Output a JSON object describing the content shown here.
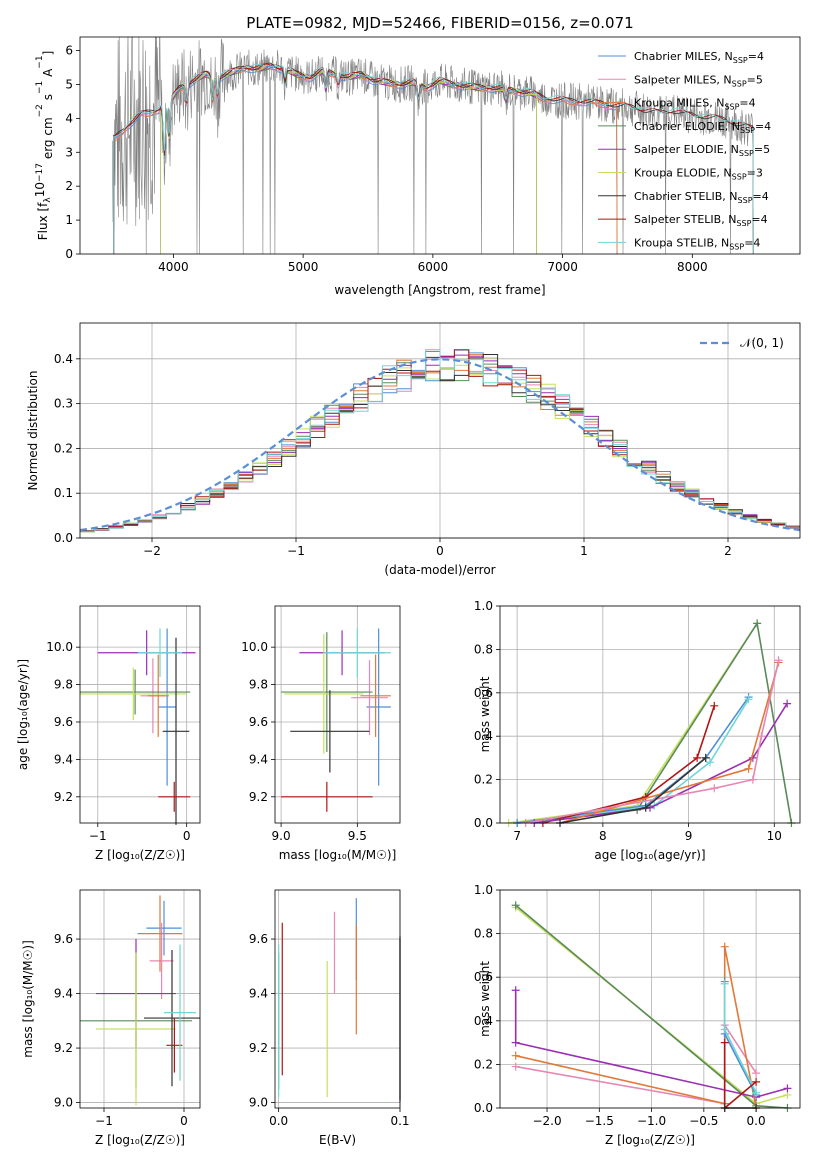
{
  "figure_title": "PLATE=0982, MJD=52466, FIBERID=0156, z=0.071",
  "colors": {
    "chabrier_miles": "#4f8fd6",
    "salpeter_miles": "#e887b4",
    "kroupa_miles": "#e0793a",
    "chabrier_elodie": "#5a8a5a",
    "salpeter_elodie": "#9a2fb4",
    "kroupa_elodie": "#c5e05e",
    "chabrier_stelib": "#333333",
    "salpeter_stelib": "#b01515",
    "kroupa_stelib": "#6fd6d6",
    "data": "#808080",
    "normal": "#5b8ed6"
  },
  "chart_data": [
    {
      "type": "line",
      "title": "PLATE=0982, MJD=52466, FIBERID=0156, z=0.071",
      "xlabel": "wavelength [Angstrom, rest frame]",
      "ylabel_parts": [
        "Flux [f",
        "λ",
        "10",
        "−17",
        " erg cm",
        "−2",
        " s",
        "−1",
        " A",
        "−1",
        "]"
      ],
      "xlim": [
        3280,
        8830
      ],
      "ylim": [
        0,
        6.4
      ],
      "xticks": [
        "4000",
        "5000",
        "6000",
        "7000",
        "8000"
      ],
      "yticks": [
        "0",
        "1",
        "2",
        "3",
        "4",
        "5",
        "6"
      ],
      "legend_position": "upper right",
      "legend": [
        {
          "label": "Chabrier MILES, N",
          "n": "4"
        },
        {
          "label": "Salpeter MILES, N",
          "n": "5"
        },
        {
          "label": "Kroupa MILES, N",
          "n": "4"
        },
        {
          "label": "Chabrier ELODIE, N",
          "n": "4"
        },
        {
          "label": "Salpeter ELODIE, N",
          "n": "5"
        },
        {
          "label": "Kroupa ELODIE, N",
          "n": "3"
        },
        {
          "label": "Chabrier STELIB, N",
          "n": "4"
        },
        {
          "label": "Salpeter STELIB, N",
          "n": "4"
        },
        {
          "label": "Kroupa STELIB, N",
          "n": "4"
        }
      ],
      "legend_sub": "SSP",
      "continuum": {
        "x": [
          3550,
          3650,
          3750,
          3850,
          3950,
          4050,
          4150,
          4250,
          4350,
          4450,
          4550,
          4650,
          4750,
          4850,
          4950,
          5050,
          5150,
          5250,
          5350,
          5450,
          5550,
          5650,
          5750,
          5850,
          5950,
          6050,
          6150,
          6250,
          6350,
          6450,
          6550,
          6650,
          6750,
          6850,
          6950,
          7050,
          7150,
          7250,
          7350,
          7450,
          7550,
          7650,
          7750,
          7850,
          7950,
          8050,
          8150,
          8250,
          8350,
          8450
        ],
        "y": [
          3.4,
          3.8,
          4.1,
          4.2,
          4.4,
          4.9,
          5.1,
          5.3,
          5.2,
          5.35,
          5.5,
          5.45,
          5.55,
          5.45,
          5.3,
          5.2,
          5.4,
          5.3,
          5.2,
          5.3,
          5.1,
          5.05,
          5.0,
          5.05,
          4.9,
          5.1,
          5.0,
          4.95,
          4.9,
          4.9,
          4.85,
          4.8,
          4.75,
          4.6,
          4.55,
          4.5,
          4.5,
          4.45,
          4.4,
          4.35,
          4.3,
          4.2,
          4.15,
          4.2,
          4.1,
          4.05,
          4.0,
          3.95,
          3.8,
          3.7
        ]
      },
      "absorption_features": [
        {
          "x": 3930,
          "depth": 1.6
        },
        {
          "x": 3968,
          "depth": 1.2
        },
        {
          "x": 4102,
          "depth": 0.6
        },
        {
          "x": 4300,
          "depth": 0.8
        },
        {
          "x": 4340,
          "depth": 0.6
        },
        {
          "x": 4861,
          "depth": 0.4
        },
        {
          "x": 5175,
          "depth": 0.6
        },
        {
          "x": 5270,
          "depth": 0.3
        },
        {
          "x": 5890,
          "depth": 0.5
        },
        {
          "x": 6563,
          "depth": 0.35
        }
      ]
    },
    {
      "type": "line",
      "xlabel": "(data-model)/error",
      "ylabel": "Normed distribution",
      "xlim": [
        -2.5,
        2.5
      ],
      "ylim": [
        0,
        0.48
      ],
      "xticks": [
        "−2",
        "−1",
        "0",
        "1",
        "2"
      ],
      "xtick_values": [
        -2,
        -1,
        0,
        1,
        2
      ],
      "yticks": [
        "0.0",
        "0.1",
        "0.2",
        "0.3",
        "0.4"
      ],
      "ytick_values": [
        0,
        0.1,
        0.2,
        0.3,
        0.4
      ],
      "legend": "𝒩(0, 1)",
      "legend_position": "upper right",
      "histogram_bin_width": 0.1
    },
    {
      "type": "scatter",
      "xlabel": "Z [log₁₀(Z/Z☉)]",
      "ylabel": "age  [log₁₀(age/yr)]",
      "xlim": [
        -1.2,
        0.15
      ],
      "ylim": [
        9.06,
        10.22
      ],
      "xticks": [
        "−1",
        "0"
      ],
      "xtick_values": [
        -1,
        0
      ],
      "yticks": [
        "9.2",
        "9.4",
        "9.6",
        "9.8",
        "10.0"
      ],
      "ytick_values": [
        9.2,
        9.4,
        9.6,
        9.8,
        10.0
      ],
      "points": [
        {
          "model": "chabrier_miles",
          "x": -0.22,
          "xerr": 0.1,
          "y": 9.68,
          "yerr": 0.42
        },
        {
          "model": "salpeter_miles",
          "x": -0.38,
          "xerr": 0.14,
          "y": 9.74,
          "yerr": 0.2
        },
        {
          "model": "kroupa_miles",
          "x": -0.32,
          "xerr": 0.12,
          "y": 9.74,
          "yerr": 0.22
        },
        {
          "model": "chabrier_elodie",
          "x": -0.58,
          "xerr": 0.62,
          "y": 9.76,
          "yerr": 0.12
        },
        {
          "model": "salpeter_elodie",
          "x": -0.45,
          "xerr": 0.55,
          "y": 9.97,
          "yerr": 0.12
        },
        {
          "model": "kroupa_elodie",
          "x": -0.6,
          "xerr": 0.6,
          "y": 9.75,
          "yerr": 0.14
        },
        {
          "model": "chabrier_stelib",
          "x": -0.12,
          "xerr": 0.15,
          "y": 9.55,
          "yerr": 0.5
        },
        {
          "model": "salpeter_stelib",
          "x": -0.14,
          "xerr": 0.18,
          "y": 9.2,
          "yerr": 0.08
        },
        {
          "model": "kroupa_stelib",
          "x": -0.3,
          "xerr": 0.25,
          "y": 9.97,
          "yerr": 0.13
        }
      ]
    },
    {
      "type": "scatter",
      "xlabel": "mass [log₁₀(M/M☉)]",
      "ylabel": "",
      "xlim": [
        8.96,
        9.78
      ],
      "ylim": [
        9.06,
        10.22
      ],
      "xticks": [
        "9.0",
        "9.5"
      ],
      "xtick_values": [
        9.0,
        9.5
      ],
      "yticks": [
        "9.2",
        "9.4",
        "9.6",
        "9.8",
        "10.0"
      ],
      "ytick_values": [
        9.2,
        9.4,
        9.6,
        9.8,
        10.0
      ],
      "points": [
        {
          "model": "chabrier_miles",
          "x": 9.64,
          "xerr": 0.08,
          "y": 9.68,
          "yerr": 0.42
        },
        {
          "model": "salpeter_miles",
          "x": 9.58,
          "xerr": 0.12,
          "y": 9.73,
          "yerr": 0.2
        },
        {
          "model": "kroupa_miles",
          "x": 9.62,
          "xerr": 0.1,
          "y": 9.74,
          "yerr": 0.22
        },
        {
          "model": "chabrier_elodie",
          "x": 9.3,
          "xerr": 0.3,
          "y": 9.76,
          "yerr": 0.32
        },
        {
          "model": "salpeter_elodie",
          "x": 9.4,
          "xerr": 0.28,
          "y": 9.97,
          "yerr": 0.12
        },
        {
          "model": "kroupa_elodie",
          "x": 9.28,
          "xerr": 0.26,
          "y": 9.75,
          "yerr": 0.32
        },
        {
          "model": "chabrier_stelib",
          "x": 9.32,
          "xerr": 0.26,
          "y": 9.55,
          "yerr": 0.22
        },
        {
          "model": "salpeter_stelib",
          "x": 9.3,
          "xerr": 0.3,
          "y": 9.2,
          "yerr": 0.08
        },
        {
          "model": "kroupa_stelib",
          "x": 9.5,
          "xerr": 0.22,
          "y": 9.97,
          "yerr": 0.13
        }
      ]
    },
    {
      "type": "line",
      "xlabel": "age  [log₁₀(age/yr)]",
      "ylabel": "mass weight",
      "xlim": [
        6.8,
        10.3
      ],
      "ylim": [
        0,
        1.0
      ],
      "xticks": [
        "7",
        "8",
        "9",
        "10"
      ],
      "xtick_values": [
        7,
        8,
        9,
        10
      ],
      "yticks": [
        "0.0",
        "0.2",
        "0.4",
        "0.6",
        "0.8",
        "1.0"
      ],
      "ytick_values": [
        0,
        0.2,
        0.4,
        0.6,
        0.8,
        1.0
      ],
      "series": [
        {
          "model": "kroupa_elodie",
          "x": [
            6.9,
            8.4,
            9.8
          ],
          "y": [
            0.0,
            0.08,
            0.92
          ]
        },
        {
          "model": "chabrier_elodie",
          "x": [
            7.0,
            8.4,
            9.8,
            10.2
          ],
          "y": [
            0.0,
            0.06,
            0.92,
            0.0
          ]
        },
        {
          "model": "chabrier_miles",
          "x": [
            7.0,
            8.5,
            9.2,
            9.7
          ],
          "y": [
            0.0,
            0.08,
            0.3,
            0.58
          ]
        },
        {
          "model": "kroupa_stelib",
          "x": [
            7.2,
            8.6,
            9.25,
            9.7
          ],
          "y": [
            0.0,
            0.08,
            0.28,
            0.57
          ]
        },
        {
          "model": "salpeter_stelib",
          "x": [
            7.3,
            8.5,
            9.1,
            9.3
          ],
          "y": [
            0.0,
            0.12,
            0.3,
            0.54
          ]
        },
        {
          "model": "salpeter_elodie",
          "x": [
            7.2,
            8.55,
            9.75,
            10.15
          ],
          "y": [
            0.0,
            0.07,
            0.3,
            0.55
          ]
        },
        {
          "model": "kroupa_miles",
          "x": [
            7.5,
            9.7,
            10.05
          ],
          "y": [
            0.0,
            0.25,
            0.74
          ]
        },
        {
          "model": "salpeter_miles",
          "x": [
            7.1,
            9.3,
            9.75,
            9.85,
            10.05
          ],
          "y": [
            0.0,
            0.16,
            0.2,
            0.4,
            0.75
          ]
        },
        {
          "model": "chabrier_stelib",
          "x": [
            7.5,
            8.5,
            9.2
          ],
          "y": [
            0.0,
            0.07,
            0.3
          ]
        }
      ]
    },
    {
      "type": "scatter",
      "xlabel": "Z [log₁₀(Z/Z☉)]",
      "ylabel": "mass [log₁₀(M/M☉)]",
      "xlim": [
        -1.3,
        0.2
      ],
      "ylim": [
        8.98,
        9.78
      ],
      "xticks": [
        "−1",
        "0"
      ],
      "xtick_values": [
        -1,
        0
      ],
      "yticks": [
        "9.0",
        "9.2",
        "9.4",
        "9.6"
      ],
      "ytick_values": [
        9.0,
        9.2,
        9.4,
        9.6
      ],
      "points": [
        {
          "model": "chabrier_miles",
          "x": -0.25,
          "xerr": 0.22,
          "y": 9.64,
          "yerr": 0.1
        },
        {
          "model": "salpeter_miles",
          "x": -0.28,
          "xerr": 0.15,
          "y": 9.52,
          "yerr": 0.14
        },
        {
          "model": "kroupa_miles",
          "x": -0.3,
          "xerr": 0.28,
          "y": 9.62,
          "yerr": 0.14
        },
        {
          "model": "chabrier_elodie",
          "x": -0.6,
          "xerr": 0.7,
          "y": 9.3,
          "yerr": 0.25
        },
        {
          "model": "salpeter_elodie",
          "x": -0.6,
          "xerr": 0.5,
          "y": 9.4,
          "yerr": 0.2
        },
        {
          "model": "kroupa_elodie",
          "x": -0.6,
          "xerr": 0.5,
          "y": 9.27,
          "yerr": 0.28
        },
        {
          "model": "chabrier_stelib",
          "x": -0.15,
          "xerr": 0.35,
          "y": 9.31,
          "yerr": 0.25
        },
        {
          "model": "salpeter_stelib",
          "x": -0.12,
          "xerr": 0.1,
          "y": 9.21,
          "yerr": 0.1
        },
        {
          "model": "kroupa_stelib",
          "x": -0.05,
          "xerr": 0.2,
          "y": 9.33,
          "yerr": 0.25
        }
      ]
    },
    {
      "type": "scatter",
      "xlabel": "E(B-V)",
      "ylabel": "",
      "xlim": [
        -0.003,
        0.1
      ],
      "ylim": [
        8.98,
        9.78
      ],
      "xticks": [
        "0.0",
        "0.1"
      ],
      "xtick_values": [
        0.0,
        0.1
      ],
      "yticks": [
        "9.0",
        "9.2",
        "9.4",
        "9.6"
      ],
      "ytick_values": [
        9.0,
        9.2,
        9.4,
        9.6
      ],
      "points": [
        {
          "model": "chabrier_miles",
          "x": 0.064,
          "xerr": 0,
          "y": 9.6,
          "yerr": 0.15
        },
        {
          "model": "salpeter_miles",
          "x": 0.046,
          "xerr": 0,
          "y": 9.55,
          "yerr": 0.15
        },
        {
          "model": "kroupa_miles",
          "x": 0.064,
          "xerr": 0,
          "y": 9.45,
          "yerr": 0.2
        },
        {
          "model": "chabrier_elodie",
          "x": 0.0,
          "xerr": 0,
          "y": 9.3,
          "yerr": 0.25
        },
        {
          "model": "salpeter_elodie",
          "x": 0.1,
          "xerr": 0,
          "y": 9.3,
          "yerr": 0.3
        },
        {
          "model": "kroupa_elodie",
          "x": 0.04,
          "xerr": 0,
          "y": 9.27,
          "yerr": 0.25
        },
        {
          "model": "chabrier_stelib",
          "x": 0.1,
          "xerr": 0,
          "y": 9.31,
          "yerr": 0.3
        },
        {
          "model": "salpeter_stelib",
          "x": 0.003,
          "xerr": 0,
          "y": 9.38,
          "yerr": 0.28
        },
        {
          "model": "kroupa_stelib",
          "x": 0.0,
          "xerr": 0,
          "y": 9.3,
          "yerr": 0.28
        }
      ]
    },
    {
      "type": "line",
      "xlabel": "Z [log₁₀(Z/Z☉)]",
      "ylabel": "mass weight",
      "xlim": [
        -2.45,
        0.42
      ],
      "ylim": [
        0,
        1.0
      ],
      "xticks": [
        "−2.0",
        "−1.5",
        "−1.0",
        "−0.5",
        "0.0"
      ],
      "xtick_values": [
        -2.0,
        -1.5,
        -1.0,
        -0.5,
        0.0
      ],
      "yticks": [
        "0.0",
        "0.2",
        "0.4",
        "0.6",
        "0.8",
        "1.0"
      ],
      "ytick_values": [
        0,
        0.2,
        0.4,
        0.6,
        0.8,
        1.0
      ],
      "series": [
        {
          "model": "kroupa_elodie",
          "x": [
            -2.3,
            0.0,
            0.3
          ],
          "y": [
            0.92,
            0.02,
            0.06
          ]
        },
        {
          "model": "chabrier_elodie",
          "x": [
            -2.3,
            0.0,
            0.3
          ],
          "y": [
            0.93,
            0.01,
            0.0
          ]
        },
        {
          "model": "salpeter_elodie",
          "x": [
            -2.3,
            -2.3,
            0.0,
            0.3
          ],
          "y": [
            0.54,
            0.3,
            0.05,
            0.09
          ]
        },
        {
          "model": "salpeter_miles",
          "x": [
            -2.3,
            -0.3,
            -0.3,
            0.0
          ],
          "y": [
            0.19,
            0.02,
            0.38,
            0.16
          ]
        },
        {
          "model": "kroupa_miles",
          "x": [
            -2.3,
            -0.3,
            -0.3,
            0.0
          ],
          "y": [
            0.24,
            0.02,
            0.74,
            0.0
          ]
        },
        {
          "model": "chabrier_miles",
          "x": [
            -0.3,
            -0.3,
            0.0
          ],
          "y": [
            0.58,
            0.34,
            0.06
          ]
        },
        {
          "model": "kroupa_stelib",
          "x": [
            -0.3,
            -0.3,
            0.0
          ],
          "y": [
            0.57,
            0.36,
            0.07
          ]
        },
        {
          "model": "salpeter_stelib",
          "x": [
            -0.3,
            -0.3,
            0.0
          ],
          "y": [
            0.3,
            0.0,
            0.12
          ]
        },
        {
          "model": "chabrier_stelib",
          "x": [
            -0.3,
            0.0
          ],
          "y": [
            0.0,
            0.0
          ]
        }
      ]
    }
  ]
}
